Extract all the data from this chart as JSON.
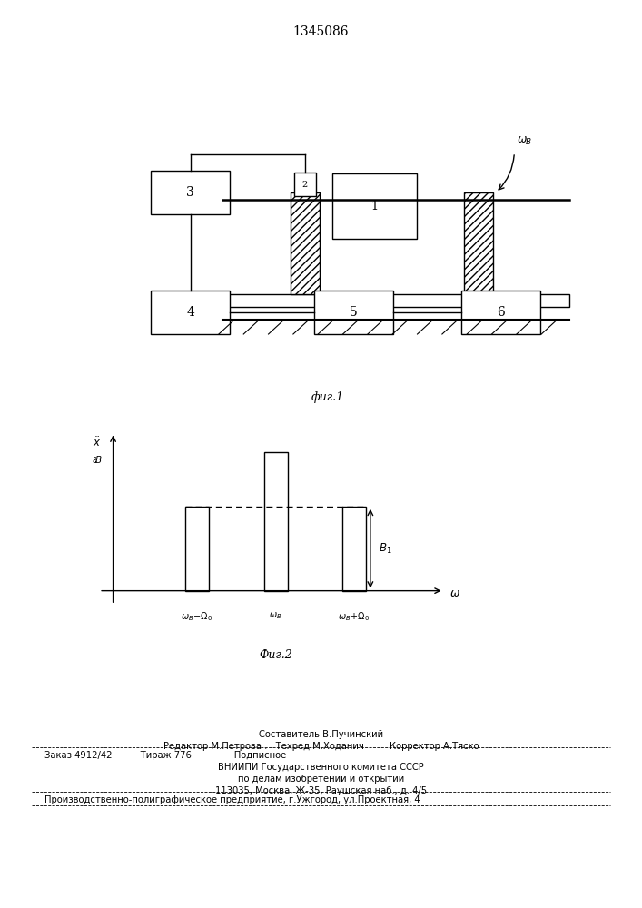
{
  "title": "1345086",
  "bg_color": "#ffffff",
  "fig1_label": "фиг.1",
  "fig2_label": "Фиг.2",
  "footer": {
    "line1": "Составитель В.Пучинский",
    "line2": "Редактор М.Петрова .   Техред М.Ходанич         Корректор А.Тяско",
    "line3": "Заказ 4912/42          Тираж 776               Подписное",
    "line4": "ВНИИПИ Государственного комитета СССР",
    "line5": "по делам изобретений и открытий",
    "line6": "113035, Москва, Ж-35, Раушская наб., д. 4/5",
    "line7": "Производственно-полиграфическое предприятие, г.Ужгород, ул.Проектная, 4"
  }
}
